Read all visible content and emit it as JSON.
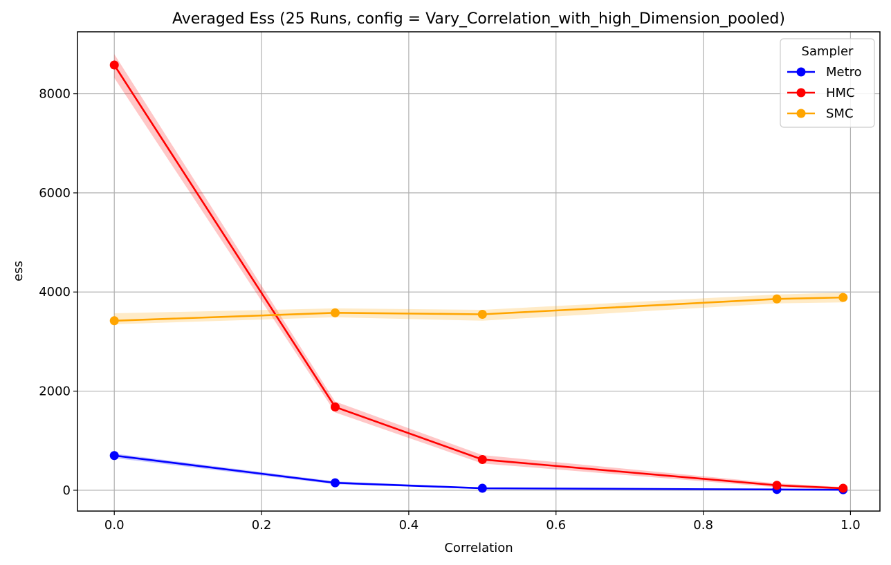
{
  "chart_data": {
    "type": "line",
    "title": "Averaged Ess (25 Runs, config = Vary_Correlation_with_high_Dimension_pooled)",
    "xlabel": "Correlation",
    "ylabel": "ess",
    "xlim": [
      -0.05,
      1.04
    ],
    "ylim": [
      -420,
      9250
    ],
    "xticks": [
      0.0,
      0.2,
      0.4,
      0.6,
      0.8,
      1.0
    ],
    "xtick_labels": [
      "0.0",
      "0.2",
      "0.4",
      "0.6",
      "0.8",
      "1.0"
    ],
    "yticks": [
      0,
      2000,
      4000,
      6000,
      8000
    ],
    "ytick_labels": [
      "0",
      "2000",
      "4000",
      "6000",
      "8000"
    ],
    "grid": true,
    "legend": {
      "title": "Sampler",
      "placement": "top-right"
    },
    "x": [
      0.0,
      0.3,
      0.5,
      0.9,
      0.99
    ],
    "series": [
      {
        "name": "Metro",
        "color": "#0000ff",
        "values": [
          700,
          150,
          40,
          15,
          10
        ],
        "lower": [
          650,
          120,
          25,
          5,
          2
        ],
        "upper": [
          740,
          180,
          55,
          25,
          18
        ]
      },
      {
        "name": "HMC",
        "color": "#ff0000",
        "values": [
          8580,
          1680,
          620,
          100,
          40
        ],
        "lower": [
          8320,
          1570,
          540,
          60,
          15
        ],
        "upper": [
          8800,
          1790,
          710,
          140,
          65
        ]
      },
      {
        "name": "SMC",
        "color": "#ffa500",
        "values": [
          3420,
          3580,
          3550,
          3860,
          3890
        ],
        "lower": [
          3350,
          3490,
          3420,
          3770,
          3790
        ],
        "upper": [
          3570,
          3670,
          3640,
          3950,
          3990
        ]
      }
    ]
  }
}
